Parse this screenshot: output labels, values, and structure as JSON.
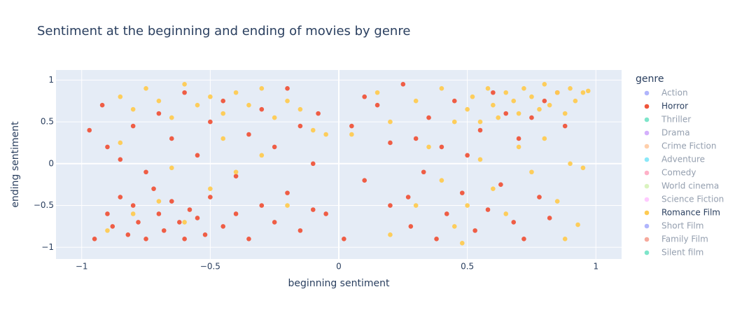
{
  "chart_data": {
    "type": "scatter",
    "title": "Sentiment at the beginning and ending of movies by genre",
    "x_label": "beginning sentiment",
    "y_label": "ending sentiment",
    "legend_title": "genre",
    "xlim": [
      -1.1,
      1.1
    ],
    "ylim": [
      -1.14,
      1.12
    ],
    "xticks": [
      {
        "value": -1,
        "label": "−1"
      },
      {
        "value": -0.5,
        "label": "−0.5"
      },
      0,
      0.5,
      1
    ],
    "yticks": [
      {
        "value": -1,
        "label": "−1"
      },
      {
        "value": -0.5,
        "label": "−0.5"
      },
      0,
      0.5,
      1
    ],
    "grid": true,
    "series": [
      {
        "name": "Action",
        "color": "#636efa",
        "legendonly": true,
        "x": [],
        "y": []
      },
      {
        "name": "Horror",
        "color": "#EF553B",
        "legendonly": false,
        "x": [
          -0.95,
          -0.9,
          -0.88,
          -0.85,
          -0.82,
          -0.8,
          -0.78,
          -0.75,
          -0.72,
          -0.7,
          -0.68,
          -0.65,
          -0.62,
          -0.6,
          -0.58,
          -0.55,
          -0.52,
          -0.5,
          -0.45,
          -0.4,
          -0.35,
          -0.3,
          -0.25,
          -0.2,
          -0.15,
          -0.1,
          -0.05,
          -0.97,
          -0.92,
          -0.9,
          -0.85,
          -0.8,
          -0.75,
          -0.7,
          -0.65,
          -0.6,
          -0.55,
          -0.5,
          -0.45,
          -0.4,
          -0.35,
          -0.3,
          -0.25,
          -0.2,
          -0.15,
          -0.1,
          -0.08,
          0.05,
          0.1,
          0.15,
          0.2,
          0.25,
          0.28,
          0.3,
          0.33,
          0.35,
          0.38,
          0.4,
          0.42,
          0.45,
          0.48,
          0.5,
          0.53,
          0.55,
          0.58,
          0.6,
          0.63,
          0.65,
          0.68,
          0.7,
          0.72,
          0.75,
          0.78,
          0.8,
          0.82,
          0.85,
          0.88,
          0.2,
          0.02,
          0.1,
          0.27
        ],
        "y": [
          -0.9,
          -0.6,
          -0.75,
          -0.4,
          -0.85,
          -0.5,
          -0.7,
          -0.9,
          -0.3,
          -0.6,
          -0.8,
          -0.45,
          -0.7,
          -0.9,
          -0.55,
          -0.65,
          -0.85,
          -0.4,
          -0.75,
          -0.6,
          -0.9,
          -0.5,
          -0.7,
          -0.35,
          -0.8,
          -0.55,
          -0.6,
          0.4,
          0.7,
          0.2,
          0.05,
          0.45,
          -0.1,
          0.6,
          0.3,
          0.85,
          0.1,
          0.5,
          0.75,
          -0.15,
          0.35,
          0.65,
          0.2,
          0.9,
          0.45,
          0.0,
          0.6,
          0.45,
          -0.2,
          0.7,
          -0.5,
          0.95,
          -0.75,
          0.3,
          -0.1,
          0.55,
          -0.9,
          0.2,
          -0.6,
          0.75,
          -0.35,
          0.1,
          -0.8,
          0.4,
          -0.55,
          0.85,
          -0.25,
          0.6,
          -0.7,
          0.3,
          -0.9,
          0.55,
          -0.4,
          0.75,
          -0.65,
          0.85,
          0.45,
          0.25,
          -0.9,
          0.8,
          -0.4
        ]
      },
      {
        "name": "Thriller",
        "color": "#00cc96",
        "legendonly": true,
        "x": [],
        "y": []
      },
      {
        "name": "Drama",
        "color": "#ab63fa",
        "legendonly": true,
        "x": [],
        "y": []
      },
      {
        "name": "Crime Fiction",
        "color": "#FFA15A",
        "legendonly": true,
        "x": [],
        "y": []
      },
      {
        "name": "Adventure",
        "color": "#19d3f3",
        "legendonly": true,
        "x": [],
        "y": []
      },
      {
        "name": "Comedy",
        "color": "#FF6692",
        "legendonly": true,
        "x": [],
        "y": []
      },
      {
        "name": "World cinema",
        "color": "#B6E880",
        "legendonly": true,
        "x": [],
        "y": []
      },
      {
        "name": "Science Fiction",
        "color": "#FF97FF",
        "legendonly": true,
        "x": [],
        "y": []
      },
      {
        "name": "Romance Film",
        "color": "#FECB52",
        "legendonly": false,
        "x": [
          -0.85,
          -0.8,
          -0.75,
          -0.7,
          -0.65,
          -0.6,
          -0.55,
          -0.5,
          -0.45,
          -0.4,
          -0.35,
          -0.3,
          -0.25,
          -0.2,
          -0.15,
          -0.1,
          -0.05,
          -0.9,
          -0.8,
          -0.7,
          -0.6,
          -0.5,
          -0.4,
          -0.3,
          -0.2,
          -0.85,
          -0.65,
          -0.45,
          0.05,
          0.15,
          0.2,
          0.3,
          0.35,
          0.4,
          0.45,
          0.5,
          0.52,
          0.55,
          0.58,
          0.6,
          0.62,
          0.65,
          0.68,
          0.7,
          0.72,
          0.75,
          0.78,
          0.8,
          0.82,
          0.85,
          0.88,
          0.9,
          0.92,
          0.95,
          0.97,
          0.3,
          0.4,
          0.45,
          0.5,
          0.55,
          0.6,
          0.65,
          0.7,
          0.75,
          0.8,
          0.85,
          0.9,
          0.95,
          0.93,
          0.2,
          0.48,
          0.88
        ],
        "y": [
          0.8,
          0.65,
          0.9,
          0.75,
          0.55,
          0.95,
          0.7,
          0.8,
          0.6,
          0.85,
          0.7,
          0.9,
          0.55,
          0.75,
          0.65,
          0.4,
          0.35,
          -0.8,
          -0.6,
          -0.45,
          -0.7,
          -0.3,
          -0.1,
          0.1,
          -0.5,
          0.25,
          -0.05,
          0.3,
          0.35,
          0.85,
          0.5,
          0.75,
          0.2,
          0.9,
          0.5,
          0.65,
          0.8,
          0.5,
          0.9,
          0.7,
          0.55,
          0.85,
          0.75,
          0.6,
          0.9,
          0.8,
          0.65,
          0.95,
          0.7,
          0.85,
          0.6,
          0.9,
          0.75,
          0.85,
          0.87,
          -0.5,
          -0.2,
          -0.75,
          -0.5,
          0.05,
          -0.3,
          -0.6,
          0.2,
          -0.1,
          0.3,
          -0.45,
          0.0,
          -0.05,
          -0.73,
          -0.85,
          -0.95,
          -0.9
        ]
      },
      {
        "name": "Short Film",
        "color": "#636efa",
        "legendonly": true,
        "x": [],
        "y": []
      },
      {
        "name": "Family Film",
        "color": "#EF553B",
        "legendonly": true,
        "x": [],
        "y": []
      },
      {
        "name": "Silent film",
        "color": "#00cc96",
        "legendonly": true,
        "x": [],
        "y": []
      }
    ]
  }
}
